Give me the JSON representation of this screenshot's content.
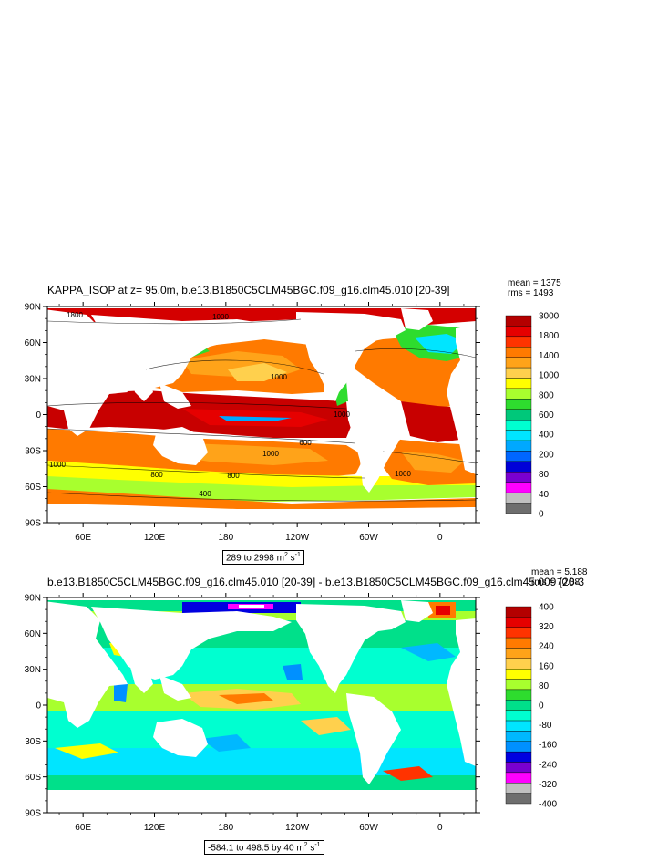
{
  "chart_data": [
    {
      "type": "heatmap",
      "title": "KAPPA_ISOP at z=  95.0m, b.e13.B1850C5CLM45BGC.f09_g16.clm45.010 [20-39]",
      "stats": {
        "mean": "mean = 1375",
        "rms": "rms = 1493"
      },
      "range_label": "289 to 2998",
      "units": "m",
      "units_sup": "2",
      "units_s": " s",
      "units_s_sup": "-1",
      "y_ticks": [
        "90N",
        "60N",
        "30N",
        "0",
        "30S",
        "60S",
        "90S"
      ],
      "x_ticks": [
        "60E",
        "120E",
        "180",
        "120W",
        "60W",
        "0"
      ],
      "colorbar_labels": [
        "3000",
        "1800",
        "1400",
        "1000",
        "800",
        "600",
        "400",
        "200",
        "80",
        "40",
        "0"
      ],
      "colorbar_colors": [
        "#b40000",
        "#e60000",
        "#ff3300",
        "#ff7a00",
        "#ffa319",
        "#ffd04d",
        "#ffff00",
        "#a8ff2e",
        "#2edc2e",
        "#00c87a",
        "#00ffd0",
        "#00e5ff",
        "#00a8ff",
        "#0066ff",
        "#0000d8",
        "#7a00d0",
        "#ff00ff",
        "#c0c0c0",
        "#6e6e6e"
      ],
      "contour_labels": [
        "1800",
        "1000",
        "1000",
        "1000",
        "1000",
        "1000",
        "800",
        "800",
        "400",
        "600",
        "1000"
      ]
    },
    {
      "type": "heatmap",
      "title": "b.e13.B1850C5CLM45BGC.f09_g16.clm45.010 [20-39] - b.e13.B1850C5CLM45BGC.f09_g16.clm45.009 [20-3",
      "stats": {
        "mean": "mean = 5.188",
        "rms": "rms = 70.88"
      },
      "range_label": "-584.1 to 498.5 by 40",
      "units": "m",
      "units_sup": "2",
      "units_s": " s",
      "units_s_sup": "-1",
      "y_ticks": [
        "90N",
        "60N",
        "30N",
        "0",
        "30S",
        "60S",
        "90S"
      ],
      "x_ticks": [
        "60E",
        "120E",
        "180",
        "120W",
        "60W",
        "0"
      ],
      "colorbar_labels": [
        "400",
        "320",
        "240",
        "160",
        "80",
        "0",
        "-80",
        "-160",
        "-240",
        "-320",
        "-400"
      ],
      "colorbar_colors": [
        "#b40000",
        "#e60000",
        "#ff3300",
        "#ff7a00",
        "#ffa319",
        "#ffd04d",
        "#ffff00",
        "#a8ff2e",
        "#2edc2e",
        "#00e08a",
        "#00ffd0",
        "#00e5ff",
        "#00b8ff",
        "#0090ff",
        "#0000e0",
        "#7a00d0",
        "#ff00ff",
        "#c0c0c0",
        "#6e6e6e"
      ]
    }
  ]
}
